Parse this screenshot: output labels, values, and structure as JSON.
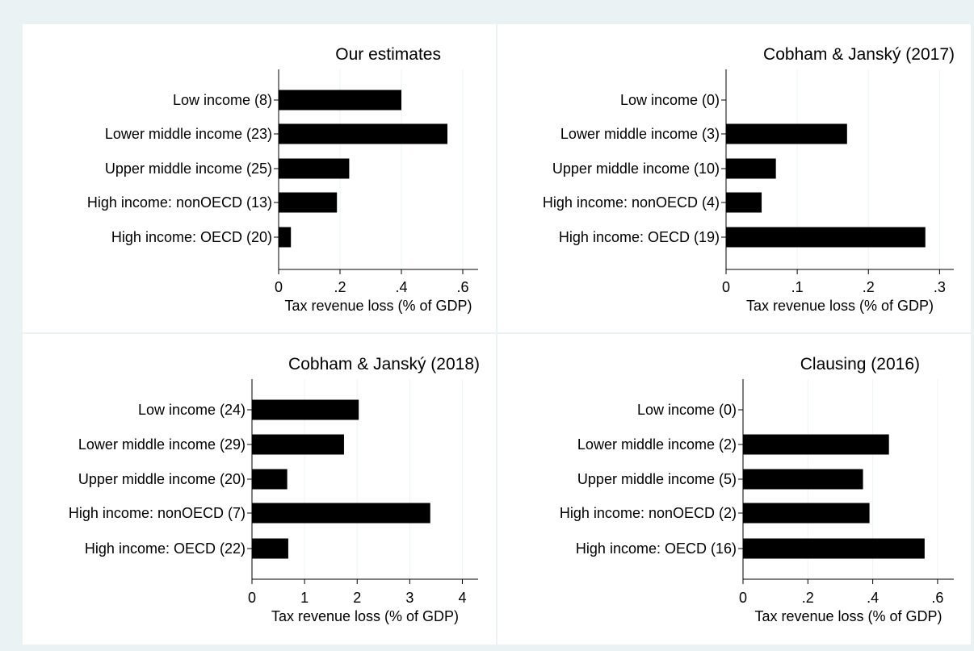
{
  "chart_data": [
    {
      "type": "bar",
      "orientation": "horizontal",
      "title": "Our estimates",
      "xlabel": "Tax revenue loss (% of GDP)",
      "categories": [
        "Low income (8)",
        "Lower middle income (23)",
        "Upper middle income (25)",
        "High income: nonOECD (13)",
        "High income: OECD (20)"
      ],
      "values": [
        0.4,
        0.55,
        0.23,
        0.19,
        0.04
      ],
      "xlim": [
        0,
        0.65
      ],
      "xticks": [
        0,
        0.2,
        0.4,
        0.6
      ],
      "xtick_labels": [
        "0",
        ".2",
        ".4",
        ".6"
      ],
      "grid": true,
      "bar_color": "#000000"
    },
    {
      "type": "bar",
      "orientation": "horizontal",
      "title": "Cobham & Janský (2017)",
      "xlabel": "Tax revenue loss (% of GDP)",
      "categories": [
        "Low income (0)",
        "Lower middle income (3)",
        "Upper middle income (10)",
        "High income: nonOECD (4)",
        "High income: OECD (19)"
      ],
      "values": [
        0,
        0.17,
        0.07,
        0.05,
        0.28
      ],
      "xlim": [
        0,
        0.32
      ],
      "xticks": [
        0,
        0.1,
        0.2,
        0.3
      ],
      "xtick_labels": [
        "0",
        ".1",
        ".2",
        ".3"
      ],
      "grid": true,
      "bar_color": "#000000"
    },
    {
      "type": "bar",
      "orientation": "horizontal",
      "title": "Cobham & Janský (2018)",
      "xlabel": "Tax revenue loss (% of GDP)",
      "categories": [
        "Low income (24)",
        "Lower middle income (29)",
        "Upper middle income (20)",
        "High income: nonOECD (7)",
        "High income: OECD (22)"
      ],
      "values": [
        2.03,
        1.75,
        0.67,
        3.39,
        0.69
      ],
      "xlim": [
        0,
        4.3
      ],
      "xticks": [
        0,
        1,
        2,
        3,
        4
      ],
      "xtick_labels": [
        "0",
        "1",
        "2",
        "3",
        "4"
      ],
      "grid": true,
      "bar_color": "#000000"
    },
    {
      "type": "bar",
      "orientation": "horizontal",
      "title": "Clausing (2016)",
      "xlabel": "Tax revenue loss (% of GDP)",
      "categories": [
        "Low income (0)",
        "Lower middle income (2)",
        "Upper middle income (5)",
        "High income: nonOECD (2)",
        "High income: OECD (16)"
      ],
      "values": [
        0,
        0.45,
        0.37,
        0.39,
        0.56
      ],
      "xlim": [
        0,
        0.65
      ],
      "xticks": [
        0,
        0.2,
        0.4,
        0.6
      ],
      "xtick_labels": [
        "0",
        ".2",
        ".4",
        ".6"
      ],
      "grid": true,
      "bar_color": "#000000"
    }
  ]
}
